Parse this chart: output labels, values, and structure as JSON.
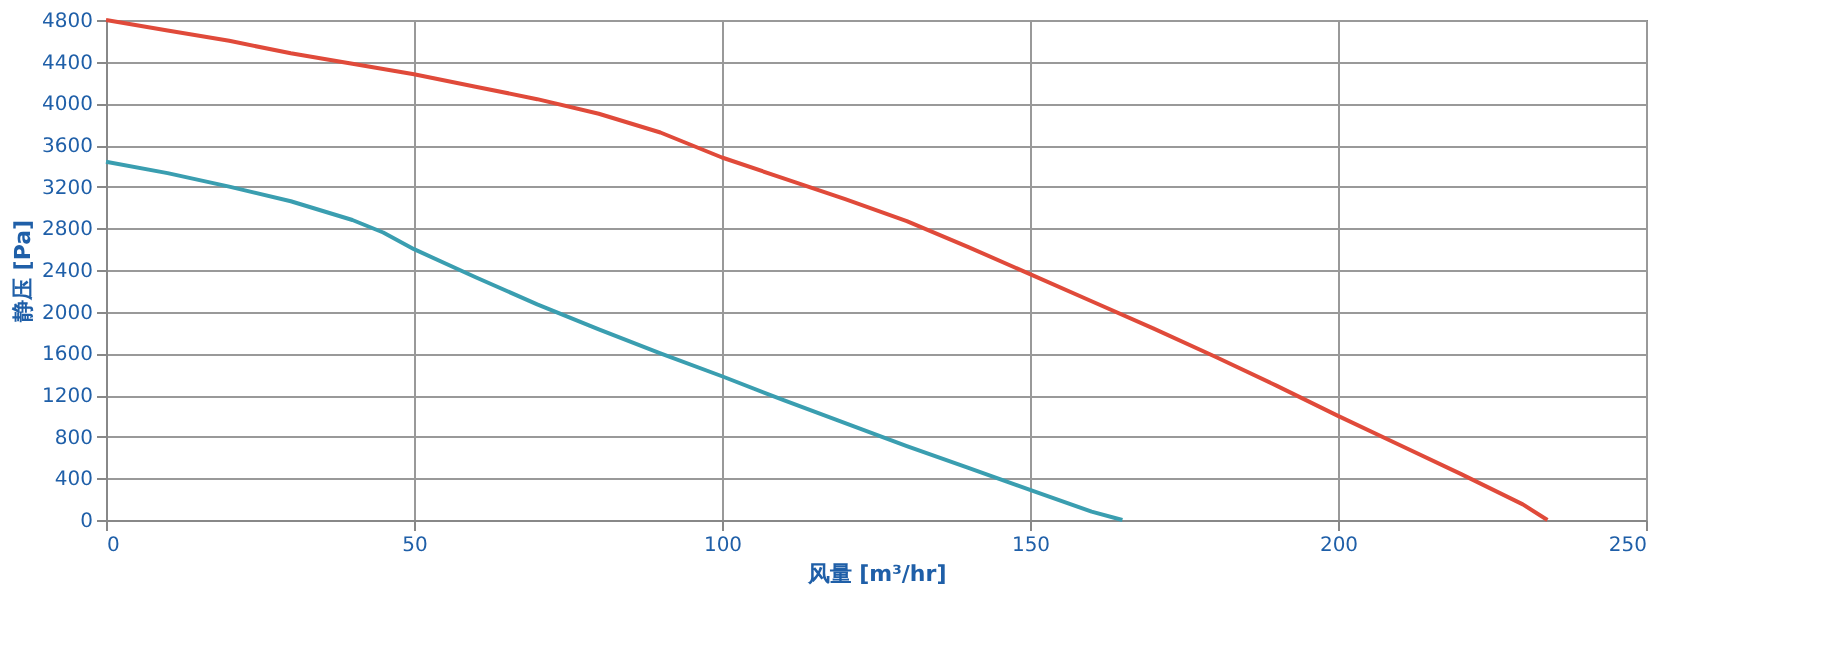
{
  "chart_data": {
    "type": "line",
    "xlabel": "风量 [m³/hr]",
    "ylabel": "静压 [Pa]",
    "xlim": [
      0,
      250
    ],
    "xticks": [
      0,
      50,
      100,
      150,
      200,
      250
    ],
    "ylim": [
      0,
      4800
    ],
    "yticks": [
      0,
      400,
      800,
      1200,
      1600,
      2000,
      2400,
      2800,
      3200,
      3600,
      4000,
      4400,
      4800
    ],
    "grid": true,
    "marker": "none",
    "line_style": "solid",
    "series": [
      {
        "color": "#3a9eb0",
        "x": [
          0,
          10,
          20,
          30,
          40,
          45,
          50,
          60,
          70,
          80,
          90,
          100,
          110,
          120,
          130,
          140,
          150,
          160,
          165
        ],
        "values": [
          3440,
          3330,
          3200,
          3060,
          2880,
          2760,
          2600,
          2330,
          2070,
          1830,
          1600,
          1380,
          1150,
          930,
          710,
          500,
          290,
          80,
          0
        ]
      },
      {
        "color": "#e04a3a",
        "x": [
          0,
          10,
          20,
          30,
          40,
          50,
          60,
          70,
          80,
          90,
          95,
          100,
          110,
          120,
          130,
          140,
          150,
          160,
          170,
          180,
          190,
          200,
          210,
          220,
          230,
          234
        ],
        "values": [
          4800,
          4700,
          4600,
          4480,
          4380,
          4280,
          4160,
          4040,
          3900,
          3720,
          3600,
          3480,
          3280,
          3080,
          2870,
          2620,
          2360,
          2100,
          1840,
          1570,
          1290,
          1000,
          720,
          440,
          150,
          0
        ]
      }
    ]
  }
}
